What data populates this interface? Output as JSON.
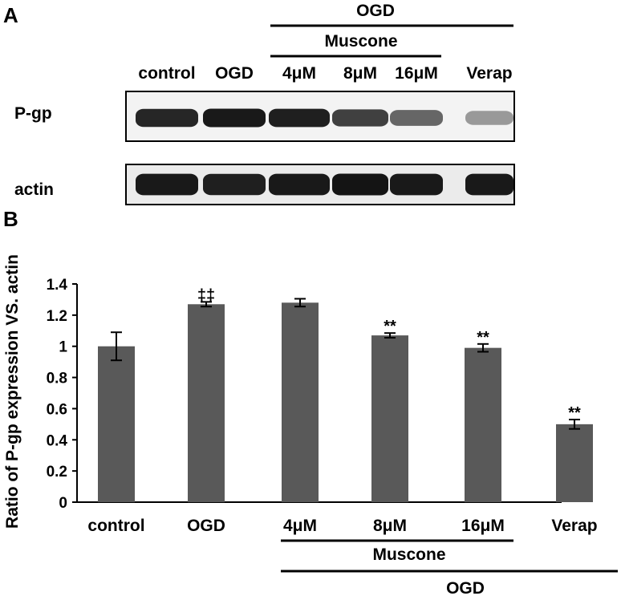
{
  "panel_a": {
    "label": "A",
    "header_ogd": "OGD",
    "header_muscone": "Muscone",
    "lanes": [
      "control",
      "OGD",
      "4μM",
      "8μM",
      "16μM",
      "Verap"
    ],
    "rows": [
      {
        "label": "P-gp",
        "band_intensity": [
          0.85,
          0.9,
          0.88,
          0.75,
          0.6,
          0.4
        ]
      },
      {
        "label": "actin",
        "band_intensity": [
          0.9,
          0.88,
          0.9,
          0.92,
          0.9,
          0.9
        ]
      }
    ]
  },
  "chart_data": {
    "type": "bar",
    "panel_label": "B",
    "title": "",
    "xlabel": "",
    "ylabel": "Ratio of P-gp expression VS. actin",
    "ylim": [
      0,
      1.4
    ],
    "yticks": [
      "0",
      "0.2",
      "0.4",
      "0.6",
      "0.8",
      "1",
      "1.2",
      "1.4"
    ],
    "categories": [
      "control",
      "OGD",
      "4μM",
      "8μM",
      "16μM",
      "Verap"
    ],
    "values": [
      1.0,
      1.27,
      1.28,
      1.07,
      0.99,
      0.5
    ],
    "errors": [
      0.09,
      0.015,
      0.025,
      0.015,
      0.025,
      0.03
    ],
    "significance": [
      "",
      "‡‡",
      "",
      "**",
      "**",
      "**"
    ],
    "group_label_muscone": "Muscone",
    "group_label_ogd": "OGD",
    "bar_color": "#595959"
  }
}
